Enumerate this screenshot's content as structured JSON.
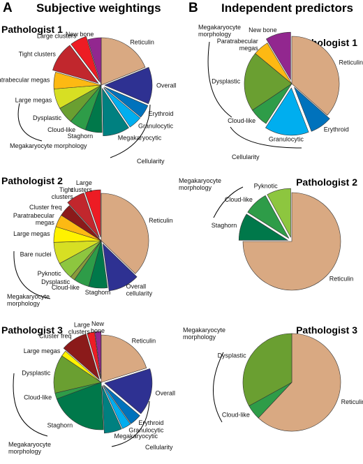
{
  "panels": [
    {
      "letter": "A",
      "title": "Subjective weightings"
    },
    {
      "letter": "B",
      "title": "Independent predictors"
    }
  ],
  "chart_data": [
    {
      "type": "pie",
      "panel": "A",
      "title": "Pathologist 1",
      "slices": [
        {
          "label": "Reticulin",
          "value": 16.5,
          "color": "#d9a982",
          "exploded": false
        },
        {
          "label": "Overall",
          "value": 11,
          "color": "#2e3192",
          "exploded": true
        },
        {
          "label": "Erythroid",
          "value": 4,
          "color": "#0072bc",
          "exploded": true
        },
        {
          "label": "Granulocytic",
          "value": 4,
          "color": "#00aeef",
          "exploded": true
        },
        {
          "label": "Megakaryocytic",
          "value": 8,
          "color": "#008080",
          "exploded": true
        },
        {
          "label": "Staghorn",
          "value": 5,
          "color": "#00784a",
          "exploded": false
        },
        {
          "label": "Cloud-like",
          "value": 5,
          "color": "#2e9c48",
          "exploded": false
        },
        {
          "label": "Dysplastic",
          "value": 5,
          "color": "#6a9f31",
          "exploded": false
        },
        {
          "label": "Large megas",
          "value": 6,
          "color": "#d7df23",
          "exploded": false
        },
        {
          "label": "Paratrabecular megas",
          "value": 5,
          "color": "#fdb913",
          "exploded": false
        },
        {
          "label": "Tight clusters",
          "value": 9,
          "color": "#c1272d",
          "exploded": true
        },
        {
          "label": "Large clusters",
          "value": 5,
          "color": "#ed1c24",
          "exploded": true
        },
        {
          "label": "New bone",
          "value": 4,
          "color": "#92278f",
          "exploded": false
        }
      ],
      "groups": [
        "Cellularity",
        "Megakaryocyte morphology"
      ]
    },
    {
      "type": "pie",
      "panel": "A",
      "title": "Pathologist 2",
      "slices": [
        {
          "label": "Reticulin",
          "value": 35,
          "color": "#d9a982",
          "exploded": false
        },
        {
          "label": "Overall cellularity",
          "value": 10,
          "color": "#2e3192",
          "exploded": true
        },
        {
          "label": "Staghorn",
          "value": 6,
          "color": "#00784a",
          "exploded": false
        },
        {
          "label": "Cloud-like",
          "value": 5,
          "color": "#2e9c48",
          "exploded": false
        },
        {
          "label": "Dysplastic",
          "value": 1.5,
          "color": "#8a9a3c",
          "exploded": false
        },
        {
          "label": "Pyknotic",
          "value": 5.5,
          "color": "#8dc63f",
          "exploded": false
        },
        {
          "label": "Bare nuclei",
          "value": 7,
          "color": "#d7df23",
          "exploded": false
        },
        {
          "label": "Large megas",
          "value": 5,
          "color": "#fff200",
          "exploded": false
        },
        {
          "label": "Paratrabecular megas",
          "value": 4,
          "color": "#fdb913",
          "exploded": false
        },
        {
          "label": "Cluster freq",
          "value": 4,
          "color": "#8b1a1a",
          "exploded": false
        },
        {
          "label": "Tight clusters",
          "value": 6,
          "color": "#c1272d",
          "exploded": true
        },
        {
          "label": "Large clusters",
          "value": 5,
          "color": "#ed1c24",
          "exploded": true
        }
      ],
      "groups": [
        "Megakaryocyte morphology"
      ]
    },
    {
      "type": "pie",
      "panel": "A",
      "title": "Pathologist 3",
      "slices": [
        {
          "label": "Reticulin",
          "value": 20,
          "color": "#d9a982",
          "exploded": false
        },
        {
          "label": "Overall",
          "value": 16,
          "color": "#2e3192",
          "exploded": true
        },
        {
          "label": "Erythroid",
          "value": 4,
          "color": "#0072bc",
          "exploded": true
        },
        {
          "label": "Granulocytic",
          "value": 3,
          "color": "#00aeef",
          "exploded": true
        },
        {
          "label": "Megakaryocytic",
          "value": 6,
          "color": "#008080",
          "exploded": true
        },
        {
          "label": "Staghorn",
          "value": 20,
          "color": "#00784a",
          "exploded": false
        },
        {
          "label": "Cloud-like",
          "value": 2,
          "color": "#2e9c48",
          "exploded": false
        },
        {
          "label": "Dysplastic",
          "value": 13,
          "color": "#6a9f31",
          "exploded": false
        },
        {
          "label": "Large megas",
          "value": 2,
          "color": "#fff200",
          "exploded": false
        },
        {
          "label": "Cluster freq",
          "value": 9,
          "color": "#8b1a1a",
          "exploded": true
        },
        {
          "label": "Large clusters",
          "value": 2.5,
          "color": "#ed1c24",
          "exploded": true
        },
        {
          "label": "New bone",
          "value": 2,
          "color": "#92278f",
          "exploded": true
        }
      ],
      "groups": [
        "Cellularity",
        "Megakaryocyte morphology"
      ]
    },
    {
      "type": "pie",
      "panel": "B",
      "title": "Pathologist 1",
      "slices": [
        {
          "label": "Reticulin",
          "value": 34,
          "color": "#d9a982",
          "exploded": false
        },
        {
          "label": "Erythroid",
          "value": 7,
          "color": "#0072bc",
          "exploded": true
        },
        {
          "label": "Granulocytic",
          "value": 14,
          "color": "#00aeef",
          "exploded": true
        },
        {
          "label": "Cloud-like",
          "value": 6,
          "color": "#2e9c48",
          "exploded": false
        },
        {
          "label": "Dysplastic",
          "value": 19,
          "color": "#6a9f31",
          "exploded": false
        },
        {
          "label": "Paratrabecular megas",
          "value": 5,
          "color": "#fdb913",
          "exploded": false
        },
        {
          "label": "New bone",
          "value": 8,
          "color": "#92278f",
          "exploded": true
        }
      ],
      "groups": [
        "Cellularity",
        "Megakaryocyte morphology"
      ]
    },
    {
      "type": "pie",
      "panel": "B",
      "title": "Pathologist 2",
      "slices": [
        {
          "label": "Reticulin",
          "value": 75,
          "color": "#d9a982",
          "exploded": false
        },
        {
          "label": "Staghorn",
          "value": 9,
          "color": "#00784a",
          "exploded": true
        },
        {
          "label": "Cloud-like",
          "value": 8,
          "color": "#2e9c48",
          "exploded": true
        },
        {
          "label": "Pyknotic",
          "value": 8,
          "color": "#8dc63f",
          "exploded": true
        }
      ],
      "groups": [
        "Megakaryocyte morphology"
      ]
    },
    {
      "type": "pie",
      "panel": "B",
      "title": "Pathologist 3",
      "slices": [
        {
          "label": "Reticulin",
          "value": 62,
          "color": "#d9a982",
          "exploded": false
        },
        {
          "label": "Cloud-like",
          "value": 5,
          "color": "#2e9c48",
          "exploded": false
        },
        {
          "label": "Dysplastic",
          "value": 33,
          "color": "#6a9f31",
          "exploded": false
        }
      ],
      "groups": [
        "Megakaryocyte morphology"
      ]
    }
  ]
}
